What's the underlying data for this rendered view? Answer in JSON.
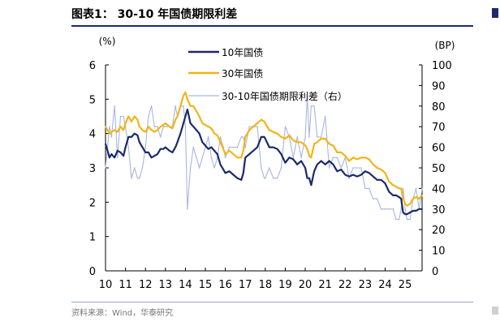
{
  "title": "图表1： 30-10 年国债期限利差",
  "source": "资料来源：Wind，华泰研究",
  "chart_data": {
    "type": "line",
    "x_tick_labels": [
      "10",
      "11",
      "12",
      "13",
      "14",
      "15",
      "16",
      "17",
      "18",
      "19",
      "20",
      "21",
      "22",
      "23",
      "24",
      "25"
    ],
    "x_range": [
      2010.0,
      2025.85
    ],
    "left_axis": {
      "unit": "(%)",
      "range": [
        0,
        6
      ],
      "ticks": [
        "0",
        "1",
        "2",
        "3",
        "4",
        "5",
        "6"
      ]
    },
    "right_axis": {
      "unit": "(BP)",
      "range": [
        0,
        100
      ],
      "ticks": [
        "0",
        "10",
        "20",
        "30",
        "40",
        "50",
        "60",
        "70",
        "80",
        "90",
        "100"
      ]
    },
    "legend_placement": "top-center",
    "grid": false,
    "series": [
      {
        "name": "10年国债",
        "axis": "left",
        "color": "#1b2a6b",
        "width": 2.2,
        "x": [
          2010.0,
          2010.1,
          2010.2,
          2010.3,
          2010.45,
          2010.6,
          2010.75,
          2010.9,
          2011.0,
          2011.15,
          2011.3,
          2011.45,
          2011.6,
          2011.7,
          2011.85,
          2012.0,
          2012.15,
          2012.3,
          2012.45,
          2012.6,
          2012.75,
          2012.9,
          2013.0,
          2013.2,
          2013.35,
          2013.5,
          2013.6,
          2013.75,
          2013.9,
          2014.0,
          2014.1,
          2014.25,
          2014.4,
          2014.55,
          2014.7,
          2014.85,
          2015.0,
          2015.15,
          2015.3,
          2015.45,
          2015.6,
          2015.75,
          2015.9,
          2016.0,
          2016.2,
          2016.4,
          2016.6,
          2016.8,
          2016.9,
          2017.0,
          2017.2,
          2017.4,
          2017.6,
          2017.8,
          2017.95,
          2018.0,
          2018.2,
          2018.4,
          2018.6,
          2018.8,
          2019.0,
          2019.2,
          2019.4,
          2019.6,
          2019.8,
          2020.0,
          2020.1,
          2020.2,
          2020.3,
          2020.45,
          2020.6,
          2020.8,
          2021.0,
          2021.2,
          2021.4,
          2021.6,
          2021.8,
          2022.0,
          2022.2,
          2022.4,
          2022.6,
          2022.8,
          2023.0,
          2023.2,
          2023.4,
          2023.6,
          2023.8,
          2024.0,
          2024.2,
          2024.4,
          2024.55,
          2024.7,
          2024.8,
          2024.9,
          2025.0,
          2025.1,
          2025.25,
          2025.4,
          2025.55,
          2025.7,
          2025.85
        ],
        "values": [
          3.7,
          3.5,
          3.3,
          3.4,
          3.3,
          3.5,
          3.45,
          3.35,
          3.6,
          3.9,
          3.9,
          4.0,
          3.95,
          3.75,
          3.6,
          3.45,
          3.45,
          3.3,
          3.35,
          3.4,
          3.55,
          3.55,
          3.6,
          3.5,
          3.45,
          3.6,
          3.75,
          4.0,
          4.3,
          4.5,
          4.7,
          4.3,
          4.2,
          4.1,
          4.0,
          3.75,
          3.65,
          3.55,
          3.6,
          3.5,
          3.4,
          3.1,
          2.95,
          2.85,
          2.9,
          2.8,
          2.7,
          2.65,
          2.85,
          3.3,
          3.4,
          3.5,
          3.6,
          3.9,
          3.9,
          3.85,
          3.6,
          3.6,
          3.55,
          3.4,
          3.15,
          3.3,
          3.25,
          3.1,
          3.2,
          3.0,
          2.7,
          2.7,
          2.5,
          2.9,
          3.1,
          3.2,
          3.1,
          3.2,
          3.1,
          2.9,
          2.95,
          2.8,
          2.75,
          2.8,
          2.75,
          2.8,
          2.9,
          2.85,
          2.75,
          2.65,
          2.65,
          2.55,
          2.3,
          2.2,
          2.2,
          2.15,
          2.1,
          1.7,
          1.65,
          1.65,
          1.7,
          1.75,
          1.75,
          1.8,
          1.8
        ]
      },
      {
        "name": "30年国债",
        "axis": "left",
        "color": "#f2b516",
        "width": 2.2,
        "x": [
          2010.0,
          2010.1,
          2010.2,
          2010.3,
          2010.45,
          2010.6,
          2010.75,
          2010.9,
          2011.0,
          2011.15,
          2011.3,
          2011.45,
          2011.6,
          2011.7,
          2011.85,
          2012.0,
          2012.15,
          2012.3,
          2012.45,
          2012.6,
          2012.75,
          2012.9,
          2013.0,
          2013.2,
          2013.35,
          2013.5,
          2013.6,
          2013.75,
          2013.9,
          2014.0,
          2014.1,
          2014.25,
          2014.4,
          2014.55,
          2014.7,
          2014.85,
          2015.0,
          2015.15,
          2015.3,
          2015.45,
          2015.6,
          2015.75,
          2015.9,
          2016.0,
          2016.2,
          2016.4,
          2016.6,
          2016.8,
          2016.9,
          2017.0,
          2017.2,
          2017.4,
          2017.6,
          2017.8,
          2017.95,
          2018.0,
          2018.2,
          2018.4,
          2018.6,
          2018.8,
          2019.0,
          2019.2,
          2019.4,
          2019.6,
          2019.8,
          2020.0,
          2020.1,
          2020.2,
          2020.3,
          2020.45,
          2020.6,
          2020.8,
          2021.0,
          2021.2,
          2021.4,
          2021.6,
          2021.8,
          2022.0,
          2022.2,
          2022.4,
          2022.6,
          2022.8,
          2023.0,
          2023.2,
          2023.4,
          2023.6,
          2023.8,
          2024.0,
          2024.2,
          2024.4,
          2024.55,
          2024.7,
          2024.8,
          2024.9,
          2025.0,
          2025.1,
          2025.25,
          2025.4,
          2025.55,
          2025.7,
          2025.85
        ],
        "values": [
          4.2,
          4.1,
          4.0,
          4.05,
          4.1,
          4.05,
          4.2,
          4.1,
          4.3,
          4.5,
          4.35,
          4.5,
          4.4,
          4.2,
          4.1,
          4.05,
          4.2,
          4.1,
          4.05,
          4.1,
          4.2,
          4.25,
          4.3,
          4.2,
          4.15,
          4.4,
          4.5,
          4.8,
          5.1,
          5.2,
          5.0,
          4.8,
          4.8,
          4.65,
          4.5,
          4.3,
          4.25,
          4.2,
          4.15,
          4.0,
          3.95,
          3.75,
          3.55,
          3.4,
          3.5,
          3.4,
          3.3,
          3.3,
          3.5,
          3.9,
          4.1,
          4.2,
          4.3,
          4.4,
          4.35,
          4.3,
          4.1,
          4.05,
          4.0,
          3.9,
          3.85,
          3.95,
          3.8,
          3.75,
          3.75,
          3.65,
          3.55,
          3.35,
          3.3,
          3.7,
          3.75,
          3.85,
          3.85,
          3.7,
          3.65,
          3.45,
          3.45,
          3.35,
          3.2,
          3.3,
          3.25,
          3.3,
          3.3,
          3.25,
          3.1,
          3.0,
          2.95,
          2.85,
          2.6,
          2.5,
          2.45,
          2.4,
          2.4,
          2.1,
          1.95,
          1.9,
          1.95,
          2.1,
          2.15,
          2.1,
          2.2
        ]
      },
      {
        "name": "30-10年国债期限利差（右）",
        "axis": "right",
        "color": "#a8b6e0",
        "width": 1.1
      }
    ]
  }
}
